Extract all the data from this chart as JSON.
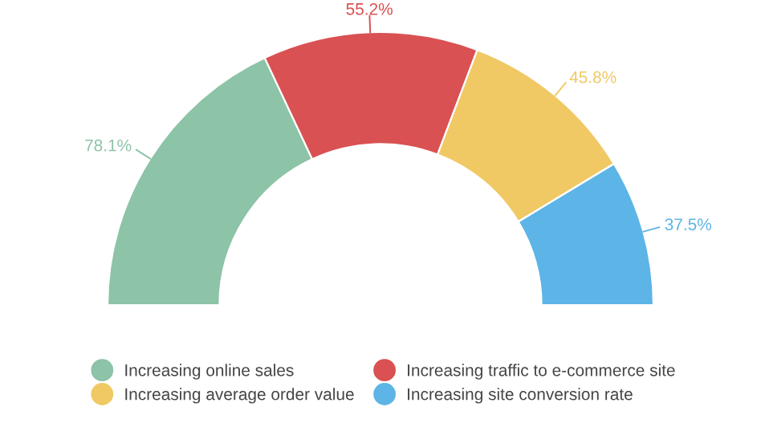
{
  "chart_data": {
    "type": "donut",
    "categories": [
      "Increasing online sales",
      "Increasing traffic to e-commerce site",
      "Increasing average order value",
      "Increasing site conversion rate"
    ],
    "values": [
      78.1,
      55.2,
      45.8,
      37.5
    ],
    "value_labels": [
      "78.1%",
      "55.2%",
      "45.8%",
      "37.5%"
    ],
    "colors": [
      "#8dc3a7",
      "#d95152",
      "#f0c965",
      "#5db4e6"
    ],
    "legend": "bottom"
  }
}
